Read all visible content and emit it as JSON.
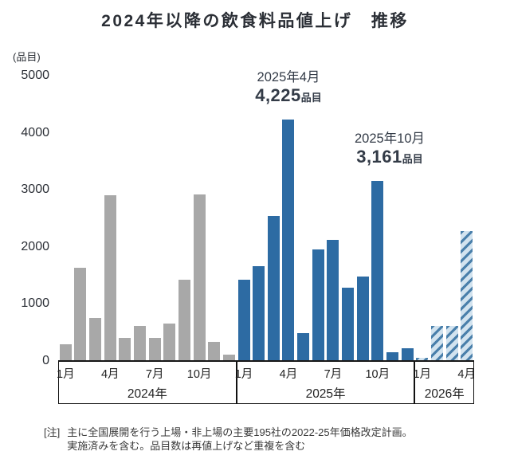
{
  "title": "2024年以降の飲食料品値上げ　推移",
  "colors": {
    "gray_bar": "#a8a8a8",
    "blue_bar": "#2d6ba3",
    "hatch_stripe": "#4a80ab",
    "hatch_bg": "#d2e3ef",
    "axis": "#1a1a1a"
  },
  "chart_data": {
    "type": "bar",
    "title": "2024年以降の飲食料品値上げ　推移",
    "unit_label": "(品目)",
    "ylabel": "品目",
    "ylim": [
      0,
      5000
    ],
    "yticks": [
      5000,
      4000,
      3000,
      2000,
      1000,
      0
    ],
    "grid": false,
    "legend": "none",
    "categories_note": "28 monthly bars: Jan 2024 - Apr 2026; values estimated from axis except labeled points 4,225 (Apr 2025) and 3,161 (Oct 2025)",
    "groups": [
      {
        "year_label": "2024年",
        "style": "solid-gray",
        "months": [
          "1月",
          "2月",
          "3月",
          "4月",
          "5月",
          "6月",
          "7月",
          "8月",
          "9月",
          "10月",
          "11月",
          "12月"
        ],
        "values": [
          300,
          1640,
          760,
          2900,
          410,
          620,
          410,
          660,
          1420,
          2920,
          330,
          110
        ],
        "month_tick_labels": [
          "1月",
          "4月",
          "7月",
          "10月"
        ]
      },
      {
        "year_label": "2025年",
        "style": "solid-blue",
        "months": [
          "1月",
          "2月",
          "3月",
          "4月",
          "5月",
          "6月",
          "7月",
          "8月",
          "9月",
          "10月",
          "11月",
          "12月"
        ],
        "values": [
          1430,
          1660,
          2540,
          4225,
          490,
          1950,
          2120,
          1280,
          1480,
          3161,
          160,
          220
        ],
        "month_tick_labels": [
          "1月",
          "4月",
          "7月",
          "10月"
        ]
      },
      {
        "year_label": "2026年",
        "style": "hatched-blue",
        "months": [
          "1月",
          "2月",
          "3月",
          "4月"
        ],
        "values": [
          55,
          610,
          620,
          2280
        ],
        "month_tick_labels": [
          "1月",
          "4月"
        ]
      }
    ],
    "annotations": [
      {
        "title": "2025年4月",
        "value": "4,225",
        "unit": "品目"
      },
      {
        "title": "2025年10月",
        "value": "3,161",
        "unit": "品目"
      }
    ]
  },
  "note": {
    "tag": "[注]",
    "line1": "主に全国展開を行う上場・非上場の主要195社の2022-25年価格改定計画。",
    "line2": "実施済みを含む。品目数は再値上げなど重複を含む"
  }
}
